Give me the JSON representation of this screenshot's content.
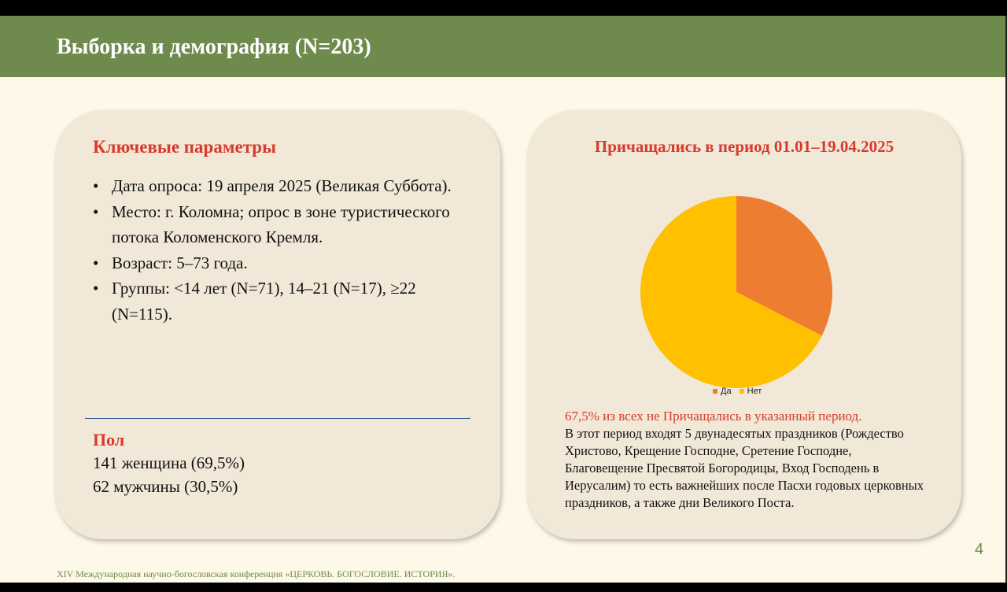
{
  "slide": {
    "title": "Выборка и демография (N=203)",
    "footer": "XIV Международная научно-богословская конференция «ЦЕРКОВЬ. БОГОСЛОВИЕ. ИСТОРИЯ».",
    "page_number": "4",
    "colors": {
      "header": "#6e8a4c",
      "background": "#fdf8e8",
      "card": "#f1e8d8",
      "accent_red": "#d93a2a",
      "divider": "#2b4a8f"
    }
  },
  "params": {
    "heading": "Ключевые параметры",
    "bullet_char": "•",
    "bullets": [
      "Дата опроса: 19 апреля 2025 (Великая Суббота).",
      "Место: г. Коломна; опрос в зоне туристического потока Коломенского Кремля.",
      "Возраст: 5–73 года.",
      "Группы: <14 лет (N=71), 14–21 (N=17), ≥22 (N=115)."
    ]
  },
  "gender": {
    "heading": "Пол",
    "lines": [
      "141 женщина (69,5%)",
      "62 мужчины (30,5%)"
    ]
  },
  "communion": {
    "note_red": "67,5% из всех не Причащались в указанный период.",
    "note_body": "В этот период входят 5 двунадесятых праздников (Рождество Христово, Крещение Господне, Сретение Господне, Благовещение Пресвятой Богородицы, Вход Господень в Иерусалим) то есть важнейших после Пасхи годовых церковных праздников, а также дни Великого Поста."
  },
  "chart_data": {
    "type": "pie",
    "title": "Причащались в период 01.01–19.04.2025",
    "categories": [
      "Да",
      "Нет"
    ],
    "values": [
      32.5,
      67.5
    ],
    "colors": [
      "#ed7d31",
      "#ffc000"
    ],
    "legend_position": "bottom"
  }
}
